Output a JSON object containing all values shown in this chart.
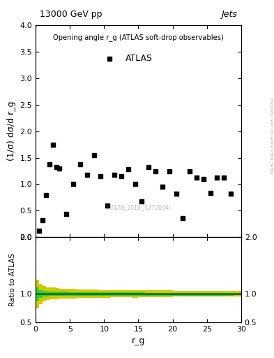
{
  "title_left": "13000 GeV pp",
  "title_right": "Jets",
  "main_title": "Opening angle r_g (ATLAS soft-drop observables)",
  "legend_label": "ATLAS",
  "xlabel": "r_g",
  "ylabel_main": "(1/σ) dσ/d r_g",
  "ylabel_ratio": "Ratio to ATLAS",
  "watermark": "(ATLAS_2019_I1772094)",
  "side_text": "mcplots.cern.ch [arXiv:1306.3436]",
  "main_xlim": [
    0,
    30
  ],
  "main_ylim": [
    0,
    4
  ],
  "ratio_ylim": [
    0.5,
    2
  ],
  "data_x": [
    0.5,
    1.0,
    1.5,
    2.0,
    2.5,
    3.0,
    3.5,
    4.5,
    5.5,
    6.5,
    7.5,
    8.5,
    9.5,
    10.5,
    11.5,
    12.5,
    13.5,
    14.5,
    15.5,
    16.5,
    17.5,
    18.5,
    19.5,
    20.5,
    21.5,
    22.5,
    23.5,
    24.5,
    25.5,
    26.5,
    27.5,
    28.5
  ],
  "data_y": [
    0.12,
    0.32,
    0.8,
    1.38,
    1.75,
    1.32,
    1.3,
    0.44,
    1.0,
    1.38,
    1.18,
    1.55,
    1.15,
    0.6,
    1.18,
    1.15,
    1.28,
    1.01,
    0.68,
    1.32,
    1.25,
    0.95,
    1.24,
    0.82,
    0.36,
    1.25,
    1.12,
    1.1,
    0.83,
    1.12,
    1.12,
    0.82
  ],
  "ratio_x_edges": [
    0.0,
    0.5,
    1.0,
    1.5,
    2.0,
    2.5,
    3.0,
    3.5,
    4.0,
    5.0,
    6.0,
    7.0,
    8.0,
    9.0,
    10.0,
    11.0,
    12.0,
    13.0,
    14.0,
    15.0,
    16.0,
    17.0,
    18.0,
    19.0,
    20.0,
    21.0,
    22.0,
    23.0,
    24.0,
    25.0,
    26.0,
    27.0,
    28.0,
    29.0,
    30.0
  ],
  "ratio_green_lo": [
    0.88,
    0.93,
    0.95,
    0.96,
    0.97,
    0.97,
    0.97,
    0.97,
    0.97,
    0.97,
    0.97,
    0.97,
    0.97,
    0.97,
    0.97,
    0.97,
    0.97,
    0.97,
    0.97,
    0.97,
    0.97,
    0.97,
    0.97,
    0.97,
    0.97,
    0.97,
    0.97,
    0.97,
    0.97,
    0.97,
    0.97,
    0.97,
    0.97,
    0.98
  ],
  "ratio_green_hi": [
    1.12,
    1.07,
    1.05,
    1.04,
    1.04,
    1.04,
    1.04,
    1.04,
    1.04,
    1.03,
    1.03,
    1.03,
    1.03,
    1.03,
    1.03,
    1.03,
    1.03,
    1.03,
    1.03,
    1.03,
    1.02,
    1.02,
    1.02,
    1.02,
    1.02,
    1.02,
    1.02,
    1.02,
    1.02,
    1.02,
    1.02,
    1.02,
    1.02,
    1.02
  ],
  "ratio_yellow_lo": [
    0.75,
    0.82,
    0.87,
    0.89,
    0.9,
    0.91,
    0.91,
    0.92,
    0.92,
    0.92,
    0.93,
    0.93,
    0.93,
    0.93,
    0.93,
    0.94,
    0.94,
    0.94,
    0.93,
    0.94,
    0.94,
    0.94,
    0.94,
    0.94,
    0.95,
    0.95,
    0.95,
    0.95,
    0.95,
    0.95,
    0.95,
    0.95,
    0.95,
    0.95
  ],
  "ratio_yellow_hi": [
    1.25,
    1.18,
    1.14,
    1.12,
    1.11,
    1.11,
    1.1,
    1.09,
    1.09,
    1.09,
    1.08,
    1.08,
    1.08,
    1.07,
    1.07,
    1.07,
    1.07,
    1.07,
    1.06,
    1.06,
    1.06,
    1.06,
    1.06,
    1.06,
    1.05,
    1.05,
    1.05,
    1.05,
    1.05,
    1.05,
    1.05,
    1.05,
    1.05,
    1.05
  ],
  "marker_color": "black",
  "marker_style": "s",
  "marker_size": 5,
  "green_color": "#33cc33",
  "yellow_color": "#cccc00",
  "line_color": "black",
  "background_color": "white",
  "yticks_main": [
    0,
    0.5,
    1.0,
    1.5,
    2.0,
    2.5,
    3.0,
    3.5,
    4.0
  ],
  "yticks_ratio": [
    0.5,
    1.0,
    2.0
  ],
  "xticks": [
    0,
    5,
    10,
    15,
    20,
    25,
    30
  ]
}
